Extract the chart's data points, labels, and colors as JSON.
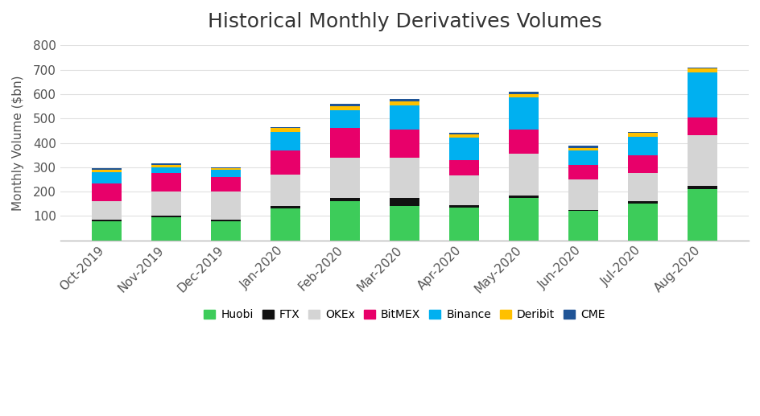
{
  "categories": [
    "Oct-2019",
    "Nov-2019",
    "Dec-2019",
    "Jan-2020",
    "Feb-2020",
    "Mar-2020",
    "Apr-2020",
    "May-2020",
    "Jun-2020",
    "Jul-2020",
    "Aug-2020"
  ],
  "series": {
    "Huobi": [
      80,
      95,
      80,
      130,
      160,
      140,
      135,
      175,
      120,
      150,
      210
    ],
    "FTX": [
      5,
      5,
      5,
      10,
      15,
      35,
      10,
      10,
      5,
      10,
      15
    ],
    "OKEx": [
      75,
      100,
      115,
      130,
      165,
      165,
      120,
      170,
      125,
      115,
      205
    ],
    "BitMEX": [
      75,
      75,
      60,
      100,
      120,
      115,
      65,
      100,
      60,
      75,
      75
    ],
    "Binance": [
      45,
      25,
      30,
      75,
      75,
      100,
      90,
      130,
      60,
      75,
      185
    ],
    "Deribit": [
      10,
      10,
      5,
      15,
      15,
      15,
      15,
      15,
      10,
      15,
      15
    ],
    "CME": [
      5,
      5,
      5,
      5,
      10,
      10,
      5,
      10,
      10,
      5,
      5
    ]
  },
  "colors": {
    "Huobi": "#3dcc5a",
    "FTX": "#111111",
    "OKEx": "#d4d4d4",
    "BitMEX": "#e8006a",
    "Binance": "#00b0f0",
    "Deribit": "#ffc000",
    "CME": "#1f5496"
  },
  "title": "Historical Monthly Derivatives Volumes",
  "ylabel": "Monthly Volume ($bn)",
  "ylim": [
    0,
    800
  ],
  "yticks": [
    0,
    100,
    200,
    300,
    400,
    500,
    600,
    700,
    800
  ],
  "background_color": "#ffffff",
  "title_fontsize": 18,
  "axis_fontsize": 11,
  "legend_fontsize": 10
}
